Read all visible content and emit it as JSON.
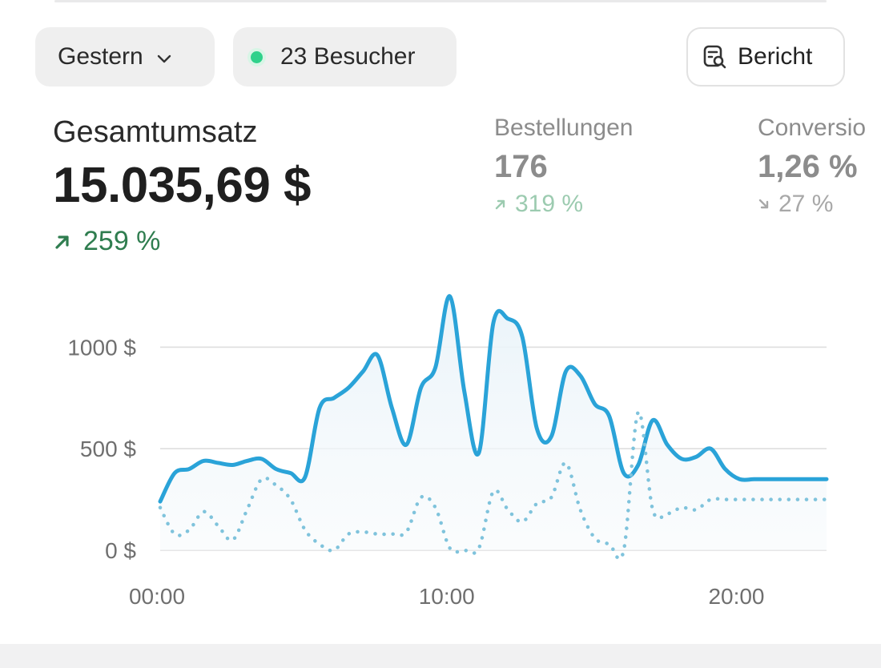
{
  "filters": {
    "date_range": "Gestern",
    "visitors_label": "23 Besucher",
    "live_color": "#2fd18b",
    "report_button": "Bericht"
  },
  "metrics": {
    "primary": {
      "label": "Gesamtumsatz",
      "value": "15.035,69 $",
      "change": "259 %",
      "trend": "up",
      "color": "#2f7d4f"
    },
    "orders": {
      "label": "Bestellungen",
      "value": "176",
      "change": "319 %",
      "trend": "up",
      "color": "#9ccbb0"
    },
    "conversion": {
      "label": "Conversio",
      "value": "1,26 %",
      "change": "27 %",
      "trend": "down",
      "color": "#a8a8a8"
    }
  },
  "colors": {
    "current_series": "#2aa3d8",
    "previous_series": "#7fc3dc",
    "grid": "#dedede"
  },
  "chart_data": {
    "type": "line",
    "x": [
      "00:00",
      "00:30",
      "01:00",
      "01:30",
      "02:00",
      "02:30",
      "03:00",
      "03:30",
      "04:00",
      "04:30",
      "05:00",
      "05:30",
      "06:00",
      "06:30",
      "07:00",
      "07:30",
      "08:00",
      "08:30",
      "09:00",
      "09:30",
      "10:00",
      "10:30",
      "11:00",
      "11:30",
      "12:00",
      "12:30",
      "13:00",
      "13:30",
      "14:00",
      "14:30",
      "15:00",
      "15:30",
      "16:00",
      "16:30",
      "17:00",
      "17:30",
      "18:00",
      "18:30",
      "19:00",
      "19:30",
      "20:00",
      "20:30",
      "21:00",
      "21:30",
      "22:00",
      "22:30",
      "23:00"
    ],
    "x_ticks": [
      "00:00",
      "10:00",
      "20:00"
    ],
    "y_ticks": [
      "0 $",
      "500 $",
      "1000 $"
    ],
    "ylim": [
      0,
      1250
    ],
    "series": [
      {
        "values": [
          240,
          380,
          400,
          440,
          430,
          420,
          440,
          450,
          400,
          380,
          360,
          700,
          750,
          800,
          880,
          960,
          700,
          520,
          800,
          900,
          1250,
          780,
          480,
          1120,
          1140,
          1050,
          600,
          560,
          880,
          860,
          720,
          660,
          380,
          420,
          640,
          520,
          450,
          460,
          500,
          400,
          350,
          350,
          350,
          350,
          350,
          350,
          350
        ],
        "style": "solid"
      },
      {
        "values": [
          210,
          80,
          100,
          190,
          120,
          50,
          200,
          350,
          320,
          250,
          100,
          30,
          0,
          80,
          90,
          80,
          80,
          90,
          260,
          210,
          10,
          0,
          10,
          290,
          200,
          140,
          230,
          260,
          430,
          200,
          60,
          30,
          0,
          680,
          200,
          180,
          210,
          200,
          250,
          250,
          250,
          250,
          250,
          250,
          250,
          250,
          250
        ],
        "style": "dotted"
      }
    ]
  }
}
